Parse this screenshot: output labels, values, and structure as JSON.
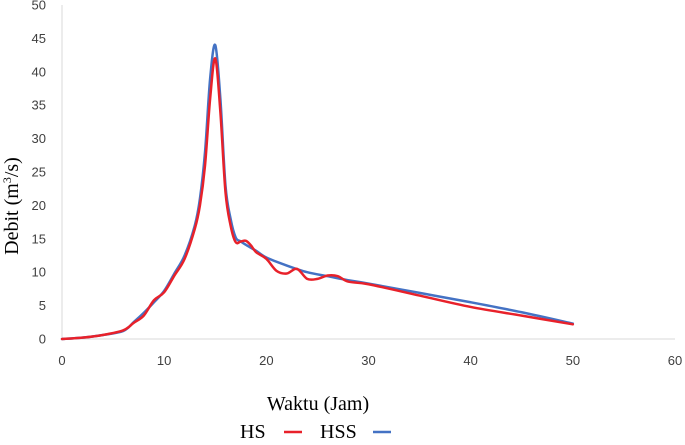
{
  "chart_data": {
    "type": "line",
    "title": "",
    "xlabel": "Waktu (Jam)",
    "ylabel_prefix": "Debit (m",
    "ylabel_sup": "3",
    "ylabel_suffix": "/s)",
    "xlim": [
      0,
      60
    ],
    "ylim": [
      0,
      50
    ],
    "x_ticks": [
      0,
      10,
      20,
      30,
      40,
      50,
      60
    ],
    "y_ticks": [
      0,
      5,
      10,
      15,
      20,
      25,
      30,
      35,
      40,
      45,
      50
    ],
    "grid": false,
    "legend_position": "bottom-center",
    "series": [
      {
        "name": "HS",
        "color": "#e8212a",
        "x": [
          0,
          2,
          4,
          6,
          7,
          8,
          9,
          10,
          11,
          12,
          13,
          13.5,
          14,
          14.5,
          15,
          15.5,
          16,
          16.5,
          17,
          17.5,
          18,
          18.5,
          19,
          20,
          21,
          22,
          23,
          24,
          25,
          26,
          27,
          28,
          30,
          35,
          40,
          45,
          50
        ],
        "y": [
          0,
          0.2,
          0.6,
          1.3,
          2.4,
          3.5,
          5.8,
          7.0,
          9.5,
          12.0,
          16.5,
          20.0,
          26.0,
          36.0,
          42.0,
          34.0,
          22.0,
          17.0,
          14.5,
          14.6,
          14.7,
          14.0,
          13.0,
          12.0,
          10.2,
          9.8,
          10.5,
          9.0,
          9.0,
          9.5,
          9.4,
          8.6,
          8.2,
          6.5,
          4.8,
          3.5,
          2.2
        ]
      },
      {
        "name": "HSS",
        "color": "#4472c4",
        "x": [
          0,
          2,
          4,
          6,
          7,
          8,
          9,
          10,
          11,
          12,
          13,
          13.5,
          14,
          14.5,
          15,
          15.5,
          16,
          16.5,
          17,
          17.5,
          18,
          19,
          20,
          22,
          24,
          26,
          28,
          30,
          35,
          40,
          45,
          50
        ],
        "y": [
          0,
          0.2,
          0.6,
          1.2,
          2.5,
          3.9,
          5.5,
          7.2,
          9.8,
          12.5,
          17.0,
          21.0,
          28.0,
          39.0,
          44.0,
          36.0,
          23.0,
          18.0,
          15.2,
          14.6,
          14.1,
          13.2,
          12.2,
          11.0,
          10.0,
          9.4,
          8.8,
          8.3,
          6.9,
          5.5,
          4.0,
          2.3
        ]
      }
    ]
  }
}
